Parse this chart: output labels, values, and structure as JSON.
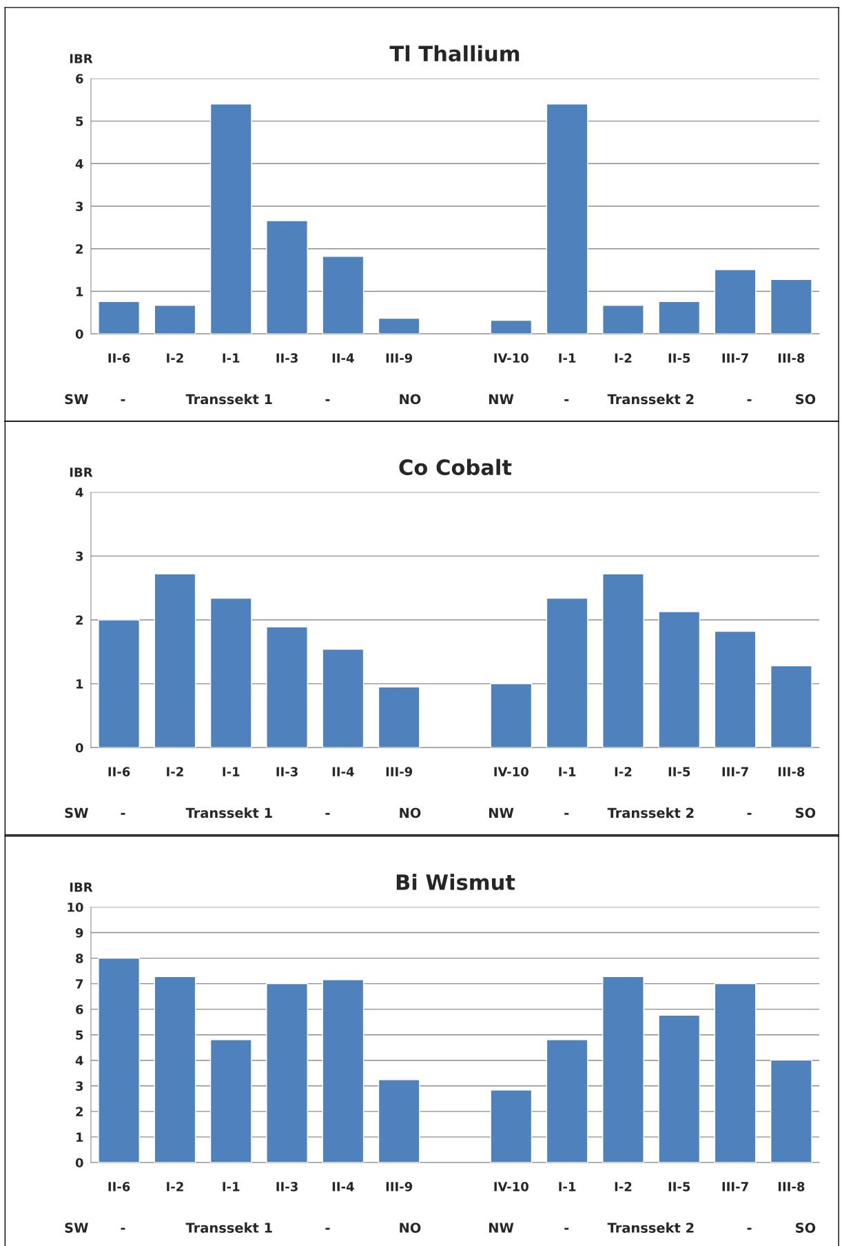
{
  "chart_data": [
    {
      "type": "bar",
      "title": "Tl Thallium",
      "ylabel": "IBR",
      "categories": [
        "II-6",
        "I-2",
        "I-1",
        "II-3",
        "II-4",
        "III-9",
        null,
        "IV-10",
        "I-1",
        "I-2",
        "II-5",
        "III-7",
        "III-8"
      ],
      "values": [
        0.76,
        0.67,
        5.4,
        2.66,
        1.82,
        0.37,
        null,
        0.32,
        5.4,
        0.67,
        0.76,
        1.51,
        1.28
      ],
      "color": "#4f81bd",
      "ylim": [
        0,
        6
      ],
      "yticks": [
        0,
        1,
        2,
        3,
        4,
        5,
        6
      ],
      "grid": "y",
      "annotations": [
        "SW",
        "-",
        "Transsekt 1",
        "-",
        "NO",
        "NW",
        "-",
        "Transsekt 2",
        "-",
        "SO"
      ]
    },
    {
      "type": "bar",
      "title": "Co Cobalt",
      "ylabel": "IBR",
      "categories": [
        "II-6",
        "I-2",
        "I-1",
        "II-3",
        "II-4",
        "III-9",
        null,
        "IV-10",
        "I-1",
        "I-2",
        "II-5",
        "III-7",
        "III-8"
      ],
      "values": [
        2.0,
        2.72,
        2.34,
        1.89,
        1.54,
        0.95,
        null,
        1.0,
        2.34,
        2.72,
        2.13,
        1.82,
        1.28
      ],
      "color": "#4f81bd",
      "ylim": [
        0,
        4
      ],
      "yticks": [
        0,
        1,
        2,
        3,
        4
      ],
      "grid": "y",
      "annotations": [
        "SW",
        "-",
        "Transsekt 1",
        "-",
        "NO",
        "NW",
        "-",
        "Transsekt 2",
        "-",
        "SO"
      ]
    },
    {
      "type": "bar",
      "title": "Bi Wismut",
      "ylabel": "IBR",
      "categories": [
        "II-6",
        "I-2",
        "I-1",
        "II-3",
        "II-4",
        "III-9",
        null,
        "IV-10",
        "I-1",
        "I-2",
        "II-5",
        "III-7",
        "III-8"
      ],
      "values": [
        8.0,
        7.28,
        4.81,
        7.0,
        7.16,
        3.24,
        null,
        2.84,
        4.81,
        7.28,
        5.77,
        7.0,
        4.01
      ],
      "color": "#4f81bd",
      "ylim": [
        0,
        10
      ],
      "yticks": [
        0,
        1,
        2,
        3,
        4,
        5,
        6,
        7,
        8,
        9,
        10
      ],
      "grid": "y",
      "annotations": [
        "SW",
        "-",
        "Transsekt 1",
        "-",
        "NO",
        "NW",
        "-",
        "Transsekt 2",
        "-",
        "SO"
      ]
    }
  ]
}
